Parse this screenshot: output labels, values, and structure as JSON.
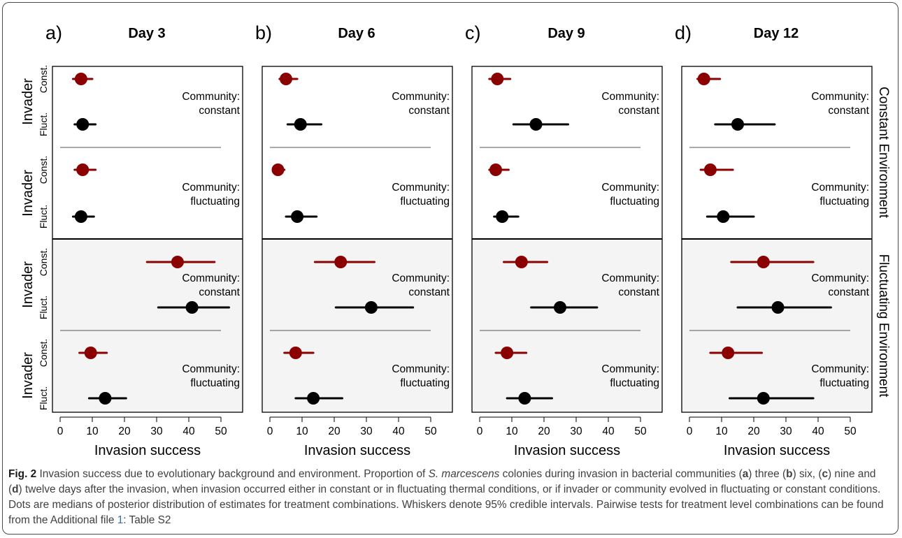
{
  "chart_data": {
    "type": "scatter",
    "description_type": "forest plot (median with 95% credible interval)",
    "panels": [
      {
        "letter": "a)",
        "title": "Day 3",
        "groups": [
          {
            "invader_const": [
              6.5,
              4,
              10
            ],
            "invader_fluct": [
              7,
              4.5,
              11
            ]
          },
          {
            "invader_const": [
              7,
              4.5,
              11
            ],
            "invader_fluct": [
              6.5,
              4,
              10.5
            ]
          },
          {
            "invader_const": [
              36.5,
              27,
              48
            ],
            "invader_fluct": [
              41,
              30.5,
              52.5
            ]
          },
          {
            "invader_const": [
              9.5,
              6,
              14.5
            ],
            "invader_fluct": [
              14,
              9,
              20.5
            ]
          }
        ]
      },
      {
        "letter": "b)",
        "title": "Day 6",
        "groups": [
          {
            "invader_const": [
              5,
              3,
              8.5
            ],
            "invader_fluct": [
              9.5,
              5.5,
              16
            ]
          },
          {
            "invader_const": [
              2.5,
              1.5,
              4.5
            ],
            "invader_fluct": [
              8.5,
              5,
              14.5
            ]
          },
          {
            "invader_const": [
              22,
              14,
              32.5
            ],
            "invader_fluct": [
              31.5,
              20.5,
              44.5
            ]
          },
          {
            "invader_const": [
              8,
              4.5,
              13.5
            ],
            "invader_fluct": [
              13.5,
              8,
              22.5
            ]
          }
        ]
      },
      {
        "letter": "c)",
        "title": "Day 9",
        "groups": [
          {
            "invader_const": [
              5.5,
              3,
              9.5
            ],
            "invader_fluct": [
              17.5,
              10.5,
              27.5
            ]
          },
          {
            "invader_const": [
              5,
              3,
              9
            ],
            "invader_fluct": [
              7,
              4.5,
              12
            ]
          },
          {
            "invader_const": [
              13,
              7.5,
              21
            ],
            "invader_fluct": [
              25,
              16,
              36.5
            ]
          },
          {
            "invader_const": [
              8.5,
              5,
              14.5
            ],
            "invader_fluct": [
              14,
              8.5,
              22.5
            ]
          }
        ]
      },
      {
        "letter": "d)",
        "title": "Day 12",
        "groups": [
          {
            "invader_const": [
              4.5,
              2.5,
              9.5
            ],
            "invader_fluct": [
              15,
              8,
              26.5
            ]
          },
          {
            "invader_const": [
              6.5,
              3.5,
              13.5
            ],
            "invader_fluct": [
              10.5,
              5.5,
              20
            ]
          },
          {
            "invader_const": [
              23,
              13,
              38.5
            ],
            "invader_fluct": [
              27.5,
              15,
              44
            ]
          },
          {
            "invader_const": [
              12,
              6.5,
              22.5
            ],
            "invader_fluct": [
              23,
              12.5,
              38.5
            ]
          }
        ]
      }
    ],
    "value_order": "[median, lower_95, upper_95]",
    "community_labels": [
      [
        "Community:",
        "constant"
      ],
      [
        "Community:",
        "fluctuating"
      ],
      [
        "Community:",
        "constant"
      ],
      [
        "Community:",
        "fluctuating"
      ]
    ],
    "row_labels": {
      "main": "Invader",
      "top": "Const.",
      "bottom": "Fluct."
    },
    "environment_labels": [
      "Constant Environment",
      "Fluctuating Environment"
    ],
    "xlabel": "Invasion success",
    "xticks": [
      0,
      10,
      20,
      30,
      40,
      50
    ],
    "xlim": [
      -1,
      57
    ],
    "colors": {
      "invader_const": "#8b0000",
      "invader_fluct": "#000000",
      "fluctuating_background": "#f4f4f4",
      "separator": "#555555"
    },
    "grid": false
  },
  "caption": {
    "label": "Fig. 2",
    "s1": " Invasion success due to evolutionary background and environment. Proportion of ",
    "species": "S. marcescens",
    "s2": " colonies during invasion in bacterial communities (",
    "a": "a",
    "s3": ") three (",
    "b": "b",
    "s4": ") six, (",
    "c": "c",
    "s5": ") nine and (",
    "d": "d",
    "s6": ") twelve days after the invasion, when invasion occurred either in constant or in fluctuating thermal conditions, or if invader or community evolved in fluctuating or constant conditions. Dots are medians of posterior distribution of estimates for treatment combinations. Whiskers denote 95% credible intervals. Pairwise tests for treatment level combinations can be found from the Additional file ",
    "file_no": "1",
    "s7": ": Table S2",
    "colors": {
      "link": "#2f6fb0"
    }
  }
}
